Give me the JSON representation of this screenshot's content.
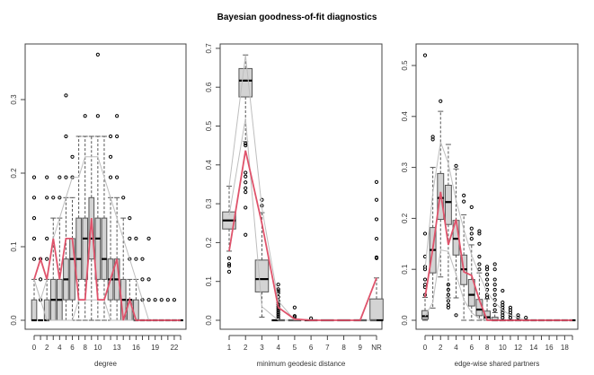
{
  "title": "Bayesian goodness-of-fit diagnostics",
  "colors": {
    "box_fill": "#d3d3d3",
    "box_border": "#555555",
    "observed_line": "#df536b",
    "ci_line": "#bebebe",
    "whisker": "#555555",
    "points": "#000000"
  },
  "chart_data": [
    {
      "type": "boxplot",
      "name": "degree",
      "xlabel": "degree",
      "ylabel": "",
      "ylim": [
        0,
        0.37
      ],
      "yticks": [
        0.0,
        0.1,
        0.2,
        0.3
      ],
      "ytick_labels": [
        "0.0",
        "0.1",
        "0.2",
        "0.3"
      ],
      "categories": [
        "0",
        "1",
        "2",
        "3",
        "4",
        "5",
        "6",
        "7",
        "8",
        "9",
        "10",
        "11",
        "12",
        "13",
        "14",
        "15",
        "16",
        "17",
        "18",
        "19",
        "20",
        "21",
        "22",
        "23"
      ],
      "xtick_labels": [
        "0",
        "",
        "2",
        "",
        "4",
        "",
        "6",
        "",
        "8",
        "",
        "10",
        "",
        "",
        "13",
        "",
        "",
        "16",
        "",
        "",
        "19",
        "",
        "",
        "22",
        ""
      ],
      "boxes": [
        {
          "q1": 0.0,
          "med": 0.0,
          "q3": 0.0278,
          "wlo": 0.0,
          "whi": 0.0556,
          "out": [
            0.0833,
            0.1111,
            0.1389,
            0.1667,
            0.1944
          ]
        },
        {
          "q1": 0.0,
          "med": 0.0,
          "q3": 0.0,
          "wlo": 0.0,
          "whi": 0.0,
          "out": [
            0.0278,
            0.0556,
            0.0833
          ]
        },
        {
          "q1": 0.0,
          "med": 0.0,
          "q3": 0.0278,
          "wlo": 0.0,
          "whi": 0.0556,
          "out": [
            0.0833,
            0.1111,
            0.1667,
            0.1944
          ]
        },
        {
          "q1": 0.0,
          "med": 0.0278,
          "q3": 0.0556,
          "wlo": 0.0,
          "whi": 0.1389,
          "out": [
            0.1667
          ]
        },
        {
          "q1": 0.0,
          "med": 0.0278,
          "q3": 0.0556,
          "wlo": 0.0,
          "whi": 0.1389,
          "out": [
            0.1667,
            0.1944
          ]
        },
        {
          "q1": 0.0278,
          "med": 0.0556,
          "q3": 0.0833,
          "wlo": 0.0,
          "whi": 0.1667,
          "out": [
            0.1944,
            0.25,
            0.3056
          ]
        },
        {
          "q1": 0.0278,
          "med": 0.0833,
          "q3": 0.1111,
          "wlo": 0.0,
          "whi": 0.1667,
          "out": [
            0.1944,
            0.2222
          ]
        },
        {
          "q1": 0.0556,
          "med": 0.0833,
          "q3": 0.1389,
          "wlo": 0.0,
          "whi": 0.25,
          "out": []
        },
        {
          "q1": 0.0556,
          "med": 0.1111,
          "q3": 0.1389,
          "wlo": 0.0,
          "whi": 0.25,
          "out": [
            0.2778
          ]
        },
        {
          "q1": 0.0833,
          "med": 0.1111,
          "q3": 0.1667,
          "wlo": 0.0,
          "whi": 0.25,
          "out": []
        },
        {
          "q1": 0.0556,
          "med": 0.1111,
          "q3": 0.1389,
          "wlo": 0.0,
          "whi": 0.25,
          "out": [
            0.2778,
            0.3611
          ]
        },
        {
          "q1": 0.0556,
          "med": 0.0833,
          "q3": 0.1389,
          "wlo": 0.0,
          "whi": 0.25,
          "out": []
        },
        {
          "q1": 0.0278,
          "med": 0.0556,
          "q3": 0.0833,
          "wlo": 0.0,
          "whi": 0.1667,
          "out": [
            0.1944,
            0.2222,
            0.25
          ]
        },
        {
          "q1": 0.0278,
          "med": 0.0556,
          "q3": 0.0833,
          "wlo": 0.0,
          "whi": 0.1667,
          "out": [
            0.1944,
            0.25,
            0.2778
          ]
        },
        {
          "q1": 0.0,
          "med": 0.0278,
          "q3": 0.0556,
          "wlo": 0.0,
          "whi": 0.1389,
          "out": [
            0.1667
          ]
        },
        {
          "q1": 0.0,
          "med": 0.0278,
          "q3": 0.0278,
          "wlo": 0.0,
          "whi": 0.0556,
          "out": [
            0.0833,
            0.1111,
            0.1389
          ]
        },
        {
          "q1": 0.0,
          "med": 0.0,
          "q3": 0.0278,
          "wlo": 0.0,
          "whi": 0.0556,
          "out": [
            0.0833,
            0.1111
          ]
        },
        {
          "q1": 0.0,
          "med": 0.0,
          "q3": 0.0,
          "wlo": 0.0,
          "whi": 0.0,
          "out": [
            0.0278,
            0.0556,
            0.0833
          ]
        },
        {
          "q1": 0.0,
          "med": 0.0,
          "q3": 0.0,
          "wlo": 0.0,
          "whi": 0.0,
          "out": [
            0.0278,
            0.0556,
            0.1111
          ]
        },
        {
          "q1": 0.0,
          "med": 0.0,
          "q3": 0.0,
          "wlo": 0.0,
          "whi": 0.0,
          "out": [
            0.0278
          ]
        },
        {
          "q1": 0.0,
          "med": 0.0,
          "q3": 0.0,
          "wlo": 0.0,
          "whi": 0.0,
          "out": [
            0.0278
          ]
        },
        {
          "q1": 0.0,
          "med": 0.0,
          "q3": 0.0,
          "wlo": 0.0,
          "whi": 0.0,
          "out": [
            0.0278
          ]
        },
        {
          "q1": 0.0,
          "med": 0.0,
          "q3": 0.0,
          "wlo": 0.0,
          "whi": 0.0,
          "out": [
            0.0278
          ]
        },
        {
          "q1": 0.0,
          "med": 0.0,
          "q3": 0.0,
          "wlo": 0.0,
          "whi": 0.0,
          "out": []
        }
      ],
      "observed": [
        0.0556,
        0.0833,
        0.0556,
        0.1111,
        0.0556,
        0.1111,
        0.1111,
        0.0278,
        0.0278,
        0.1389,
        0.0278,
        0.0278,
        0.0556,
        0.0833,
        0.0,
        0.0278,
        0.0,
        0.0,
        0.0,
        0.0,
        0.0,
        0.0,
        0.0,
        0.0
      ],
      "ci_lower": [
        0.0556,
        0.0278,
        0.0,
        0.0,
        0.0,
        0.0,
        0.0,
        0.0278,
        0.0278,
        0.0278,
        0.0278,
        0.0278,
        0.0,
        0.0,
        0.0,
        0.0,
        0.0,
        0.0,
        0.0,
        0.0,
        0.0,
        0.0,
        0.0,
        0.0
      ],
      "ci_upper": [
        0.0556,
        0.0278,
        0.0556,
        0.1111,
        0.1389,
        0.1667,
        0.1944,
        0.1944,
        0.2222,
        0.2222,
        0.2222,
        0.1944,
        0.1667,
        0.1389,
        0.1111,
        0.0833,
        0.0556,
        0.0278,
        0.0,
        0.0,
        0.0,
        0.0,
        0.0,
        0.0
      ]
    },
    {
      "type": "boxplot",
      "name": "minimum geodesic distance",
      "xlabel": "minimum geodesic distance",
      "ylabel": "",
      "ylim": [
        0,
        0.7
      ],
      "yticks": [
        0.0,
        0.1,
        0.2,
        0.3,
        0.4,
        0.5,
        0.6,
        0.7
      ],
      "ytick_labels": [
        "0.0",
        "0.1",
        "0.2",
        "0.3",
        "0.4",
        "0.5",
        "0.6",
        "0.7"
      ],
      "categories": [
        "1",
        "2",
        "3",
        "4",
        "5",
        "6",
        "7",
        "8",
        "9",
        "NR"
      ],
      "xtick_labels": [
        "1",
        "2",
        "3",
        "4",
        "5",
        "6",
        "7",
        "8",
        "9",
        "NR"
      ],
      "boxes": [
        {
          "q1": 0.235,
          "med": 0.257,
          "q3": 0.279,
          "wlo": 0.178,
          "whi": 0.345,
          "out": [
            0.16,
            0.145,
            0.14,
            0.125
          ]
        },
        {
          "q1": 0.575,
          "med": 0.617,
          "q3": 0.648,
          "wlo": 0.46,
          "whi": 0.683,
          "out": [
            0.455,
            0.45,
            0.38,
            0.37,
            0.355,
            0.34,
            0.33,
            0.29,
            0.22
          ]
        },
        {
          "q1": 0.073,
          "med": 0.106,
          "q3": 0.155,
          "wlo": 0.008,
          "whi": 0.277,
          "out": [
            0.31,
            0.295
          ]
        },
        {
          "q1": 0.0,
          "med": 0.0,
          "q3": 0.0,
          "wlo": 0.0,
          "whi": 0.0,
          "out": [
            0.005,
            0.01,
            0.015,
            0.02,
            0.025,
            0.03,
            0.035,
            0.04,
            0.045,
            0.05,
            0.06,
            0.07,
            0.075,
            0.08,
            0.092
          ]
        },
        {
          "q1": 0.0,
          "med": 0.0,
          "q3": 0.0,
          "wlo": 0.0,
          "whi": 0.0,
          "out": [
            0.008,
            0.011,
            0.033
          ]
        },
        {
          "q1": 0.0,
          "med": 0.0,
          "q3": 0.0,
          "wlo": 0.0,
          "whi": 0.0,
          "out": [
            0.005
          ]
        },
        {
          "q1": 0.0,
          "med": 0.0,
          "q3": 0.0,
          "wlo": 0.0,
          "whi": 0.0,
          "out": []
        },
        {
          "q1": 0.0,
          "med": 0.0,
          "q3": 0.0,
          "wlo": 0.0,
          "whi": 0.0,
          "out": []
        },
        {
          "q1": 0.0,
          "med": 0.0,
          "q3": 0.0,
          "wlo": 0.0,
          "whi": 0.0,
          "out": []
        },
        {
          "q1": 0.0,
          "med": 0.0,
          "q3": 0.055,
          "wlo": 0.0,
          "whi": 0.109,
          "out": [
            0.16,
            0.162,
            0.21,
            0.26,
            0.31,
            0.356
          ]
        }
      ],
      "observed": [
        0.178,
        0.437,
        0.25,
        0.033,
        0.003,
        0.0,
        0.0,
        0.0,
        0.0,
        0.109
      ],
      "ci_lower": [
        0.27,
        0.52,
        0.035,
        0.0,
        0.0,
        0.0,
        0.0,
        0.0,
        0.0,
        0.0
      ],
      "ci_upper": [
        0.345,
        0.683,
        0.29,
        0.05,
        0.0,
        0.0,
        0.0,
        0.0,
        0.0,
        0.109
      ]
    },
    {
      "type": "boxplot",
      "name": "edge-wise shared partners",
      "xlabel": "edge-wise shared partners",
      "ylabel": "",
      "ylim": [
        0,
        0.54
      ],
      "yticks": [
        0.0,
        0.1,
        0.2,
        0.3,
        0.4,
        0.5
      ],
      "ytick_labels": [
        "0.0",
        "0.1",
        "0.2",
        "0.3",
        "0.4",
        "0.5"
      ],
      "categories": [
        "0",
        "1",
        "2",
        "3",
        "4",
        "5",
        "6",
        "7",
        "8",
        "9",
        "10",
        "11",
        "12",
        "13",
        "14",
        "15",
        "16",
        "17",
        "18",
        "19"
      ],
      "xtick_labels": [
        "0",
        "",
        "2",
        "",
        "4",
        "",
        "6",
        "",
        "8",
        "",
        "10",
        "",
        "12",
        "",
        "14",
        "",
        "16",
        "",
        "18",
        ""
      ],
      "boxes": [
        {
          "q1": 0.002,
          "med": 0.008,
          "q3": 0.019,
          "wlo": 0.0,
          "whi": 0.045,
          "out": [
            0.05,
            0.065,
            0.07,
            0.08,
            0.1,
            0.105,
            0.125,
            0.17,
            0.52
          ]
        },
        {
          "q1": 0.093,
          "med": 0.138,
          "q3": 0.182,
          "wlo": 0.024,
          "whi": 0.3,
          "out": [
            0.355,
            0.36
          ]
        },
        {
          "q1": 0.198,
          "med": 0.24,
          "q3": 0.288,
          "wlo": 0.085,
          "whi": 0.41,
          "out": [
            0.43
          ]
        },
        {
          "q1": 0.188,
          "med": 0.232,
          "q3": 0.265,
          "wlo": 0.044,
          "whi": 0.345,
          "out": [
            0.03,
            0.025,
            0.038,
            0.05,
            0.06,
            0.07
          ]
        },
        {
          "q1": 0.128,
          "med": 0.16,
          "q3": 0.196,
          "wlo": 0.044,
          "whi": 0.297,
          "out": [
            0.01,
            0.303
          ]
        },
        {
          "q1": 0.07,
          "med": 0.1,
          "q3": 0.128,
          "wlo": 0.0,
          "whi": 0.207,
          "out": [
            0.233,
            0.245
          ]
        },
        {
          "q1": 0.028,
          "med": 0.05,
          "q3": 0.08,
          "wlo": 0.0,
          "whi": 0.148,
          "out": [
            0.16,
            0.17,
            0.18,
            0.222
          ]
        },
        {
          "q1": 0.009,
          "med": 0.021,
          "q3": 0.041,
          "wlo": 0.0,
          "whi": 0.093,
          "out": [
            0.1,
            0.11,
            0.125,
            0.15,
            0.17,
            0.175
          ]
        },
        {
          "q1": 0.0,
          "med": 0.006,
          "q3": 0.018,
          "wlo": 0.0,
          "whi": 0.042,
          "out": [
            0.045,
            0.05,
            0.06,
            0.07,
            0.08,
            0.09,
            0.1,
            0.105
          ]
        },
        {
          "q1": 0.0,
          "med": 0.0,
          "q3": 0.006,
          "wlo": 0.0,
          "whi": 0.015,
          "out": [
            0.02,
            0.03,
            0.04,
            0.05,
            0.06,
            0.07,
            0.08,
            0.1,
            0.11
          ]
        },
        {
          "q1": 0.0,
          "med": 0.0,
          "q3": 0.0,
          "wlo": 0.0,
          "whi": 0.0,
          "out": [
            0.005,
            0.01,
            0.015,
            0.02,
            0.025,
            0.03,
            0.035,
            0.058
          ]
        },
        {
          "q1": 0.0,
          "med": 0.0,
          "q3": 0.0,
          "wlo": 0.0,
          "whi": 0.0,
          "out": [
            0.005,
            0.01,
            0.015,
            0.02,
            0.025
          ]
        },
        {
          "q1": 0.0,
          "med": 0.0,
          "q3": 0.0,
          "wlo": 0.0,
          "whi": 0.0,
          "out": [
            0.005,
            0.01
          ]
        },
        {
          "q1": 0.0,
          "med": 0.0,
          "q3": 0.0,
          "wlo": 0.0,
          "whi": 0.0,
          "out": [
            0.005
          ]
        },
        {
          "q1": 0.0,
          "med": 0.0,
          "q3": 0.0,
          "wlo": 0.0,
          "whi": 0.0,
          "out": []
        },
        {
          "q1": 0.0,
          "med": 0.0,
          "q3": 0.0,
          "wlo": 0.0,
          "whi": 0.0,
          "out": []
        },
        {
          "q1": 0.0,
          "med": 0.0,
          "q3": 0.0,
          "wlo": 0.0,
          "whi": 0.0,
          "out": []
        },
        {
          "q1": 0.0,
          "med": 0.0,
          "q3": 0.0,
          "wlo": 0.0,
          "whi": 0.0,
          "out": []
        },
        {
          "q1": 0.0,
          "med": 0.0,
          "q3": 0.0,
          "wlo": 0.0,
          "whi": 0.0,
          "out": []
        },
        {
          "q1": 0.0,
          "med": 0.0,
          "q3": 0.0,
          "wlo": 0.0,
          "whi": 0.0,
          "out": []
        }
      ],
      "observed": [
        0.045,
        0.14,
        0.252,
        0.148,
        0.198,
        0.095,
        0.088,
        0.04,
        0.0,
        0.0,
        0.0,
        0.0,
        0.0,
        0.0,
        0.0,
        0.0,
        0.0,
        0.0,
        0.0,
        0.0
      ],
      "ci_lower": [
        0.008,
        0.035,
        0.138,
        0.135,
        0.09,
        0.04,
        0.015,
        0.003,
        0.0,
        0.0,
        0.0,
        0.0,
        0.0,
        0.0,
        0.0,
        0.0,
        0.0,
        0.0,
        0.0,
        0.0
      ],
      "ci_upper": [
        0.1,
        0.25,
        0.35,
        0.308,
        0.235,
        0.178,
        0.128,
        0.09,
        0.055,
        0.035,
        0.02,
        0.01,
        0.005,
        0.0,
        0.0,
        0.0,
        0.0,
        0.0,
        0.0,
        0.0
      ]
    }
  ]
}
